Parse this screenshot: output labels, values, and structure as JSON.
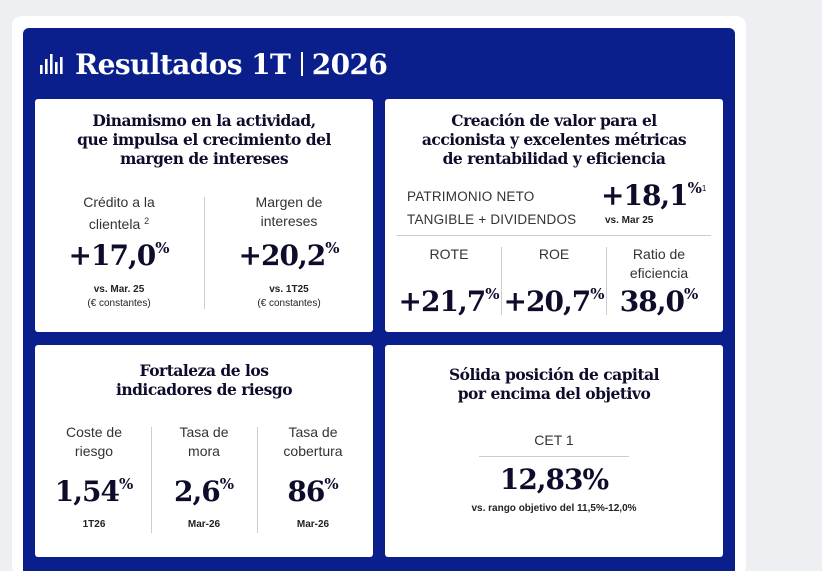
{
  "header": {
    "icon": "bar-chart-icon",
    "title": "Resultados 1T",
    "year": "2026"
  },
  "card_activity": {
    "title_lines": [
      "Dinamismo en la actividad,",
      "que impulsa el crecimiento del",
      "margen de intereses"
    ],
    "metrics": [
      {
        "label_lines": [
          "Crédito a la",
          "clientela"
        ],
        "footnote": "2",
        "value": "+17,0",
        "unit": "%",
        "note1": "vs. Mar. 25",
        "note2": "(€ constantes)"
      },
      {
        "label_lines": [
          "Margen de",
          "intereses"
        ],
        "footnote": "",
        "value": "+20,2",
        "unit": "%",
        "note1": "vs. 1T25",
        "note2": "(€ constantes)"
      }
    ]
  },
  "card_value": {
    "title_lines": [
      "Creación de valor para el",
      "accionista y excelentes métricas",
      "de rentabilidad y eficiencia"
    ],
    "patrimonio": {
      "label_lines": [
        "PATRIMONIO NETO",
        "TANGIBLE + DIVIDENDOS"
      ],
      "value": "+18,1",
      "unit": "%",
      "footnote": "1",
      "note": "vs. Mar 25"
    },
    "metrics": [
      {
        "label_lines": [
          "ROTE",
          ""
        ],
        "value": "+21,7",
        "unit": "%"
      },
      {
        "label_lines": [
          "ROE",
          ""
        ],
        "value": "+20,7",
        "unit": "%"
      },
      {
        "label_lines": [
          "Ratio de",
          "eficiencia"
        ],
        "value": "38,0",
        "unit": "%"
      }
    ]
  },
  "card_risk": {
    "title_lines": [
      "Fortaleza de los",
      "indicadores de riesgo"
    ],
    "metrics": [
      {
        "label_lines": [
          "Coste de",
          "riesgo"
        ],
        "value": "1,54",
        "unit": "%",
        "note": "1T26"
      },
      {
        "label_lines": [
          "Tasa de",
          "mora"
        ],
        "value": "2,6",
        "unit": "%",
        "note": "Mar-26"
      },
      {
        "label_lines": [
          "Tasa de",
          "cobertura"
        ],
        "value": "86",
        "unit": "%",
        "note": "Mar-26"
      }
    ]
  },
  "card_capital": {
    "title_lines": [
      "Sólida posición de capital",
      "por encima del objetivo"
    ],
    "label": "CET 1",
    "value": "12,83%",
    "note": "vs. rango objetivo del 11,5%-12,0%"
  },
  "colors": {
    "panel": "#0a1e8c",
    "card": "#ffffff",
    "text": "#0d0d2b"
  }
}
